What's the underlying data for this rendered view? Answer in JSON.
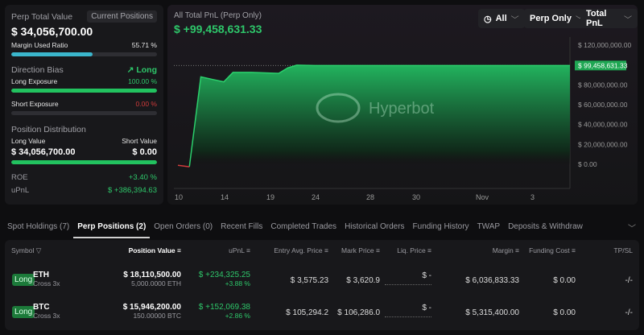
{
  "summary": {
    "perp_total_value_label": "Perp Total Value",
    "current_positions_label": "Current Positions",
    "perp_total_value": "$ 34,056,700.00",
    "margin_used_label": "Margin Used Ratio",
    "margin_used_value": "55.71 %",
    "margin_used_fraction": 0.5571,
    "direction_bias_label": "Direction Bias",
    "direction_bias_value": "Long",
    "long_exposure_label": "Long Exposure",
    "long_exposure_value": "100.00 %",
    "long_exposure_fraction": 1.0,
    "short_exposure_label": "Short Exposure",
    "short_exposure_value": "0.00 %",
    "short_exposure_fraction": 0.0,
    "position_distribution_label": "Position Distribution",
    "long_value_label": "Long Value",
    "short_value_label": "Short Value",
    "long_value": "$ 34,056,700.00",
    "short_value": "$ 0.00",
    "long_share_fraction": 1.0,
    "roe_label": "ROE",
    "roe_value": "+3.40 %",
    "upnl_label": "uPnL",
    "upnl_value": "$ +386,394.63"
  },
  "chart": {
    "title": "All Total PnL (Perp Only)",
    "total": "$ +99,458,631.33",
    "filters": {
      "range": "All",
      "scope": "Perp Only",
      "metric": "Total PnL"
    },
    "watermark": "Hyperbot",
    "colors": {
      "positive": "#22b35e",
      "negative": "#d03b3b"
    }
  },
  "chart_data": {
    "type": "area",
    "x_ticks": [
      "10",
      "14",
      "19",
      "24",
      "28",
      "30",
      "Nov",
      "3"
    ],
    "y_ticks": [
      "$ 120,000,000.00",
      "$ 80,000,000.00",
      "$ 60,000,000.00",
      "$ 40,000,000.00",
      "$ 20,000,000.00",
      "$ 0.00"
    ],
    "y_tick_values": [
      120000000,
      80000000,
      60000000,
      40000000,
      20000000,
      0
    ],
    "ylim": [
      -5000000,
      120000000
    ],
    "last_value_label": "$ 99,458,631.33",
    "grid": false,
    "series": [
      {
        "points": [
          [
            "Oct 10",
            -1000000
          ],
          [
            "Oct 11",
            -2500000
          ],
          [
            "Oct 12",
            88000000
          ],
          [
            "Oct 13",
            85500000
          ],
          [
            "Oct 14",
            83000000
          ],
          [
            "Oct 15",
            92500000
          ],
          [
            "Oct 17",
            92500000
          ],
          [
            "Oct 20",
            91500000
          ],
          [
            "Oct 21",
            97000000
          ],
          [
            "Oct 22",
            99800000
          ],
          [
            "Oct 23",
            99600000
          ],
          [
            "Oct 24",
            99458631
          ],
          [
            "Oct 28",
            99458631
          ],
          [
            "Oct 30",
            99458631
          ],
          [
            "Nov 1",
            99458631
          ],
          [
            "Nov 3",
            99458631
          ],
          [
            "Nov 6",
            99458631
          ]
        ]
      }
    ]
  },
  "tabs": [
    "Spot Holdings (7)",
    "Perp Positions (2)",
    "Open Orders (0)",
    "Recent Fills",
    "Completed Trades",
    "Historical Orders",
    "Funding History",
    "TWAP",
    "Deposits & Withdraw"
  ],
  "table": {
    "headers": [
      "Symbol",
      "Position Value",
      "uPnL",
      "Entry Avg. Price",
      "Mark Price",
      "Liq. Price",
      "Margin",
      "Funding Cost",
      "TP/SL"
    ],
    "rows": [
      {
        "side": "Long",
        "symbol": "ETH",
        "mode": "Cross 3x",
        "value": "$ 18,110,500.00",
        "size": "5,000.0000 ETH",
        "upnl": "$ +234,325.25",
        "upnl_pct": "+3.88 %",
        "entry": "$ 3,575.23",
        "mark": "$ 3,620.9",
        "liq": "$ -",
        "margin": "$ 6,036,833.33",
        "funding": "$ 0.00",
        "tpsl": "-/-"
      },
      {
        "side": "Long",
        "symbol": "BTC",
        "mode": "Cross 3x",
        "value": "$ 15,946,200.00",
        "size": "150.00000 BTC",
        "upnl": "$ +152,069.38",
        "upnl_pct": "+2.86 %",
        "entry": "$ 105,294.2",
        "mark": "$ 106,286.0",
        "liq": "$ -",
        "margin": "$ 5,315,400.00",
        "funding": "$ 0.00",
        "tpsl": "-/-"
      }
    ]
  }
}
